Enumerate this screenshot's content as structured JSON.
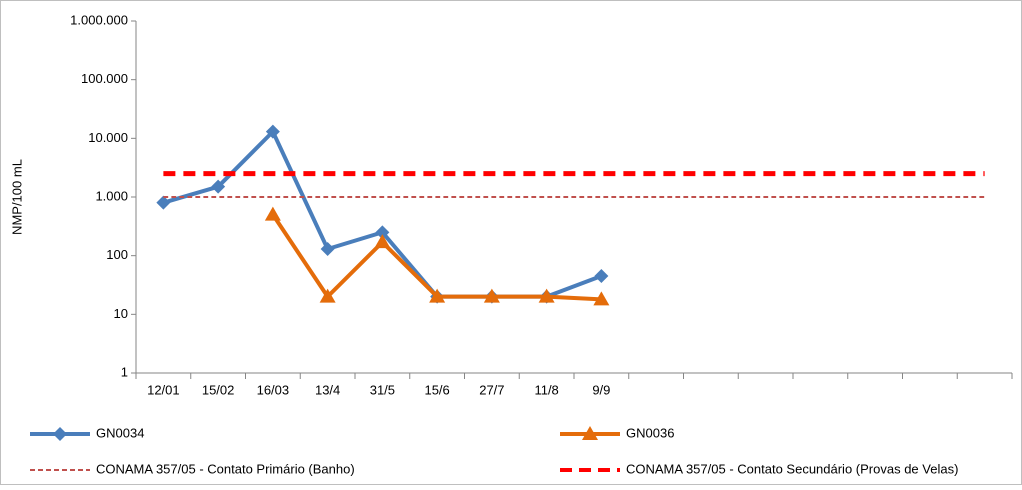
{
  "chart_data": {
    "type": "line",
    "y_label": "NMP/100 mL",
    "categories": [
      "12/01",
      "15/02",
      "16/03",
      "13/4",
      "31/5",
      "15/6",
      "27/7",
      "11/8",
      "9/9",
      null,
      null,
      null,
      null,
      null,
      null,
      null
    ],
    "log_scale": true,
    "ylim": [
      1,
      1000000
    ],
    "yticks": [
      1,
      10,
      100,
      {
        "value": 1000,
        "label": "1.000"
      },
      {
        "value": 10000,
        "label": "10.000"
      },
      {
        "value": 100000,
        "label": "100.000"
      },
      {
        "value": 1000000,
        "label": "1.000.000"
      }
    ],
    "legend": "bottom",
    "series": [
      {
        "name": "GN0034",
        "color": "#4a7ebb",
        "marker": "diamond",
        "line_style": "solid",
        "line_width": 4,
        "values": [
          800,
          1500,
          13000,
          130,
          250,
          20,
          20,
          20,
          45,
          null,
          null,
          null,
          null,
          null,
          null,
          null
        ]
      },
      {
        "name": "GN0036",
        "color": "#e46c0a",
        "marker": "triangle",
        "line_style": "solid",
        "line_width": 4,
        "values": [
          null,
          null,
          500,
          20,
          170,
          20,
          20,
          20,
          18,
          null,
          null,
          null,
          null,
          null,
          null,
          null
        ]
      },
      {
        "name": "CONAMA 357/05 - Contato Primário (Banho)",
        "color": "#c0504d",
        "marker": "none",
        "line_style": "dashed",
        "line_width": 2,
        "values": [
          1000,
          1000,
          1000,
          1000,
          1000,
          1000,
          1000,
          1000,
          1000,
          1000,
          1000,
          1000,
          1000,
          1000,
          1000,
          1000
        ]
      },
      {
        "name": "CONAMA 357/05 - Contato Secundário (Provas de Velas)",
        "color": "#ff0000",
        "marker": "none",
        "line_style": "dashed",
        "line_width": 5,
        "values": [
          2500,
          2500,
          2500,
          2500,
          2500,
          2500,
          2500,
          2500,
          2500,
          2500,
          2500,
          2500,
          2500,
          2500,
          2500,
          2500
        ]
      }
    ]
  }
}
